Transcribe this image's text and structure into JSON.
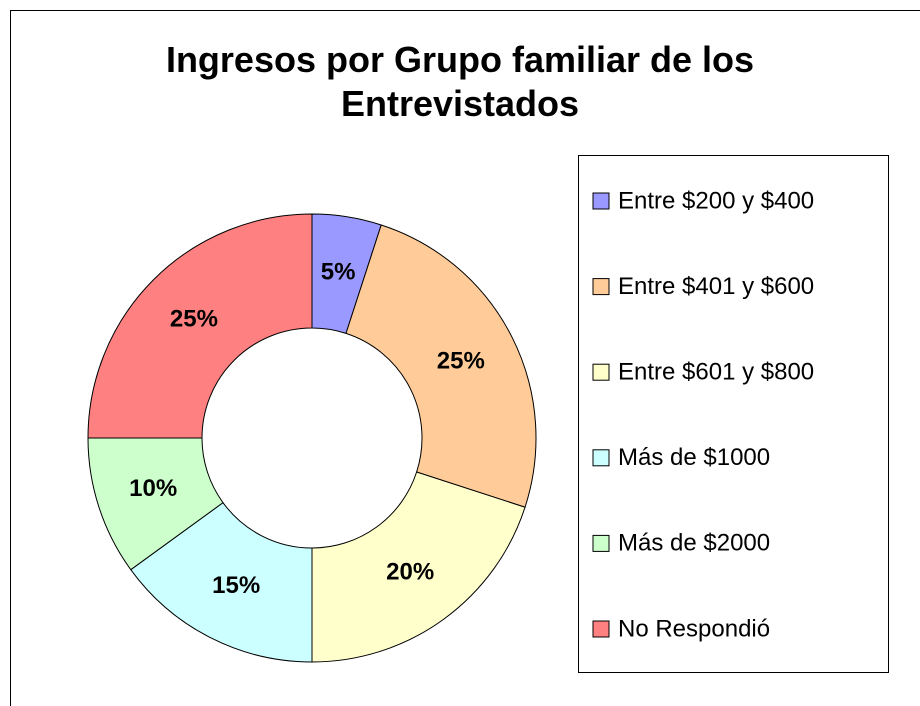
{
  "chart_data": {
    "type": "donut",
    "title": "Ingresos por Grupo familiar de los Entrevistados",
    "categories": [
      "Entre $200 y $400",
      "Entre $401 y $600",
      "Entre $601 y $800",
      "Más de $1000",
      "Más de $2000",
      "No Respondió"
    ],
    "values": [
      5,
      25,
      20,
      15,
      10,
      25
    ],
    "value_labels": [
      "5%",
      "25%",
      "20%",
      "15%",
      "10%",
      "25%"
    ],
    "colors": [
      "#9999ff",
      "#ffcc99",
      "#ffffcc",
      "#ccffff",
      "#ccffcc",
      "#ff8080"
    ],
    "legend": "right"
  }
}
